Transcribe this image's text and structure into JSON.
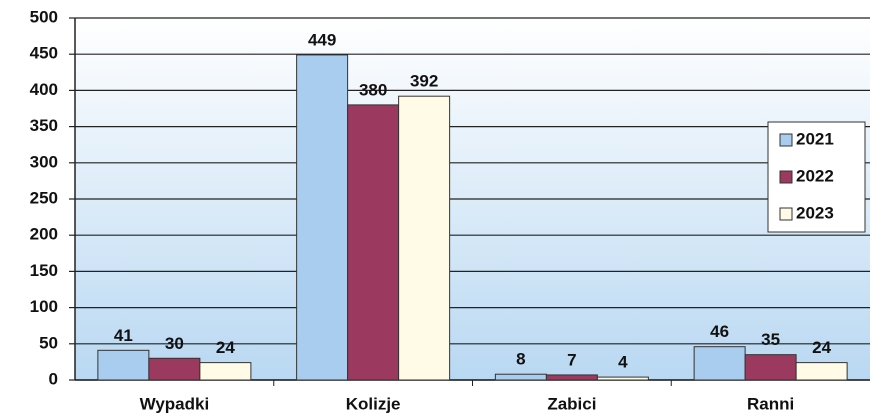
{
  "chart_data": {
    "type": "bar",
    "categories": [
      "Wypadki",
      "Kolizje",
      "Zabici",
      "Ranni"
    ],
    "series": [
      {
        "name": "2021",
        "color": "#a9cdee",
        "values": [
          41,
          449,
          8,
          46
        ]
      },
      {
        "name": "2022",
        "color": "#9b3a5e",
        "values": [
          30,
          380,
          7,
          35
        ]
      },
      {
        "name": "2023",
        "color": "#fffbe6",
        "values": [
          24,
          392,
          4,
          24
        ]
      }
    ],
    "ylim": [
      0,
      500
    ],
    "yticks": [
      0,
      50,
      100,
      150,
      200,
      250,
      300,
      350,
      400,
      450,
      500
    ],
    "grid": true,
    "legend": "right",
    "data_labels": true
  }
}
